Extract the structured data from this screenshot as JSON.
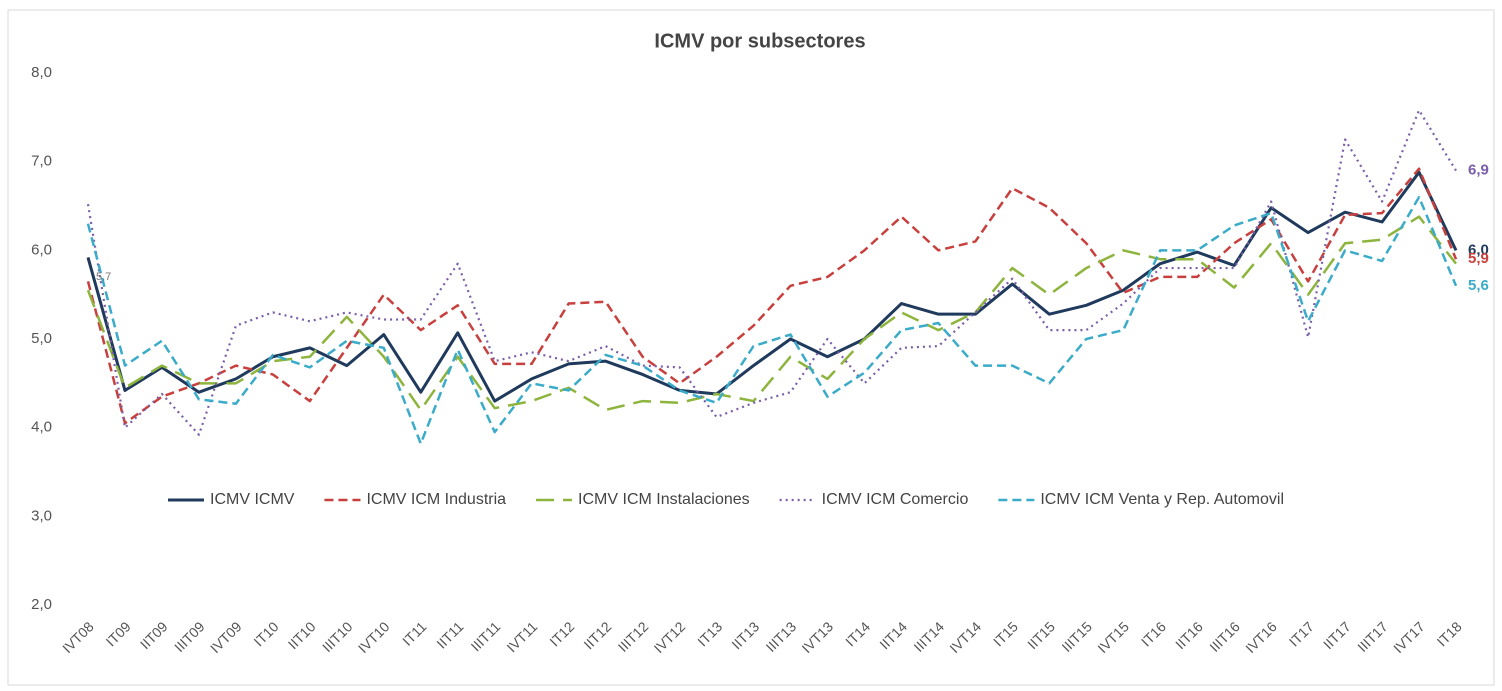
{
  "chart_data": {
    "type": "line",
    "title": "ICMV por subsectores",
    "categories": [
      "IVT08",
      "IT09",
      "IIT09",
      "IIIT09",
      "IVT09",
      "IT10",
      "IIT10",
      "IIIT10",
      "IVT10",
      "IT11",
      "IIT11",
      "IIIT11",
      "IVT11",
      "IT12",
      "IIT12",
      "IIIT12",
      "IVT12",
      "IT13",
      "IIT13",
      "IIIT13",
      "IVT13",
      "IT14",
      "IIT14",
      "IIIT14",
      "IVT14",
      "IT15",
      "IIT15",
      "IIIT15",
      "IVT15",
      "IT16",
      "IIT16",
      "IIIT16",
      "IVT16",
      "IT17",
      "IIT17",
      "IIIT17",
      "IVT17",
      "IT18"
    ],
    "ylim": [
      2,
      8
    ],
    "yticks": [
      {
        "value": 2,
        "label": "2,0"
      },
      {
        "value": 3,
        "label": "3,0"
      },
      {
        "value": 4,
        "label": "4,0"
      },
      {
        "value": 5,
        "label": "5,0"
      },
      {
        "value": 6,
        "label": "6,0"
      },
      {
        "value": 7,
        "label": "7,0"
      },
      {
        "value": 8,
        "label": "8,0"
      }
    ],
    "grid": false,
    "legend": "bottom",
    "annotations": [
      {
        "text": "5,7",
        "x": "IVT08",
        "y": 5.7
      }
    ],
    "series": [
      {
        "name": "ICMV ICMV",
        "color": "#1f3a5c",
        "style": "solid",
        "values": [
          5.92,
          4.42,
          4.68,
          4.4,
          4.55,
          4.8,
          4.9,
          4.7,
          5.05,
          4.4,
          5.07,
          4.3,
          4.55,
          4.72,
          4.75,
          4.6,
          4.42,
          4.38,
          4.7,
          5.0,
          4.8,
          5.0,
          5.4,
          5.28,
          5.28,
          5.62,
          5.28,
          5.38,
          5.55,
          5.85,
          5.98,
          5.83,
          6.48,
          6.2,
          6.43,
          6.32,
          6.88,
          6.0
        ],
        "value_labels": [
          null,
          null,
          null,
          null,
          null,
          null,
          null,
          null,
          null,
          null,
          null,
          null,
          null,
          null,
          null,
          null,
          null,
          null,
          null,
          null,
          null,
          null,
          null,
          null,
          null,
          null,
          null,
          null,
          null,
          null,
          null,
          null,
          null,
          null,
          null,
          null,
          null,
          "6,0"
        ]
      },
      {
        "name": "ICMV ICM Industria",
        "color": "#c8403e",
        "style": "dashed",
        "values": [
          5.65,
          4.05,
          4.35,
          4.5,
          4.7,
          4.6,
          4.3,
          4.9,
          5.5,
          5.1,
          5.38,
          4.72,
          4.72,
          5.4,
          5.42,
          4.8,
          4.5,
          4.8,
          5.15,
          5.6,
          5.7,
          6.0,
          6.38,
          6.0,
          6.1,
          6.7,
          6.48,
          6.08,
          5.52,
          5.7,
          5.7,
          6.08,
          6.35,
          5.65,
          6.4,
          6.42,
          6.92,
          5.9
        ],
        "value_labels": [
          null,
          null,
          null,
          null,
          null,
          null,
          null,
          null,
          null,
          null,
          null,
          null,
          null,
          null,
          null,
          null,
          null,
          null,
          null,
          null,
          null,
          null,
          null,
          null,
          null,
          null,
          null,
          null,
          null,
          null,
          null,
          null,
          null,
          null,
          null,
          null,
          null,
          "5,9"
        ]
      },
      {
        "name": "ICMV ICM Instalaciones",
        "color": "#8db43c",
        "style": "longdash",
        "values": [
          5.55,
          4.45,
          4.7,
          4.5,
          4.5,
          4.75,
          4.8,
          5.25,
          4.8,
          4.2,
          4.8,
          4.22,
          4.3,
          4.45,
          4.2,
          4.3,
          4.28,
          4.38,
          4.3,
          4.8,
          4.55,
          5.0,
          5.3,
          5.1,
          5.3,
          5.8,
          5.5,
          5.8,
          6.0,
          5.9,
          5.9,
          5.58,
          6.08,
          5.5,
          6.08,
          6.12,
          6.38,
          5.85
        ]
      },
      {
        "name": "ICMV ICM Comercio",
        "color": "#7a5ea8",
        "style": "dotted",
        "values": [
          6.52,
          4.0,
          4.38,
          3.92,
          5.15,
          5.3,
          5.2,
          5.3,
          5.22,
          5.22,
          5.85,
          4.75,
          4.85,
          4.75,
          4.92,
          4.7,
          4.68,
          4.12,
          4.28,
          4.4,
          5.0,
          4.5,
          4.9,
          4.92,
          5.3,
          5.68,
          5.1,
          5.1,
          5.4,
          5.8,
          5.8,
          5.8,
          6.55,
          5.02,
          7.25,
          6.55,
          7.58,
          6.9
        ],
        "value_labels": [
          null,
          null,
          null,
          null,
          null,
          null,
          null,
          null,
          null,
          null,
          null,
          null,
          null,
          null,
          null,
          null,
          null,
          null,
          null,
          null,
          null,
          null,
          null,
          null,
          null,
          null,
          null,
          null,
          null,
          null,
          null,
          null,
          null,
          null,
          null,
          null,
          null,
          "6,9"
        ]
      },
      {
        "name": "ICMV ICM Venta y Rep. Automovil",
        "color": "#3aabc8",
        "style": "dashed",
        "values": [
          6.3,
          4.7,
          4.98,
          4.32,
          4.27,
          4.82,
          4.68,
          4.98,
          4.9,
          3.82,
          4.88,
          3.95,
          4.5,
          4.42,
          4.82,
          4.7,
          4.42,
          4.28,
          4.92,
          5.05,
          4.35,
          4.62,
          5.1,
          5.18,
          4.7,
          4.7,
          4.5,
          5.0,
          5.1,
          6.0,
          6.0,
          6.28,
          6.42,
          5.2,
          6.0,
          5.88,
          6.6,
          5.6
        ],
        "value_labels": [
          null,
          null,
          null,
          null,
          null,
          null,
          null,
          null,
          null,
          null,
          null,
          null,
          null,
          null,
          null,
          null,
          null,
          null,
          null,
          null,
          null,
          null,
          null,
          null,
          null,
          null,
          null,
          null,
          null,
          null,
          null,
          null,
          null,
          null,
          null,
          null,
          null,
          "5,6"
        ]
      }
    ]
  }
}
